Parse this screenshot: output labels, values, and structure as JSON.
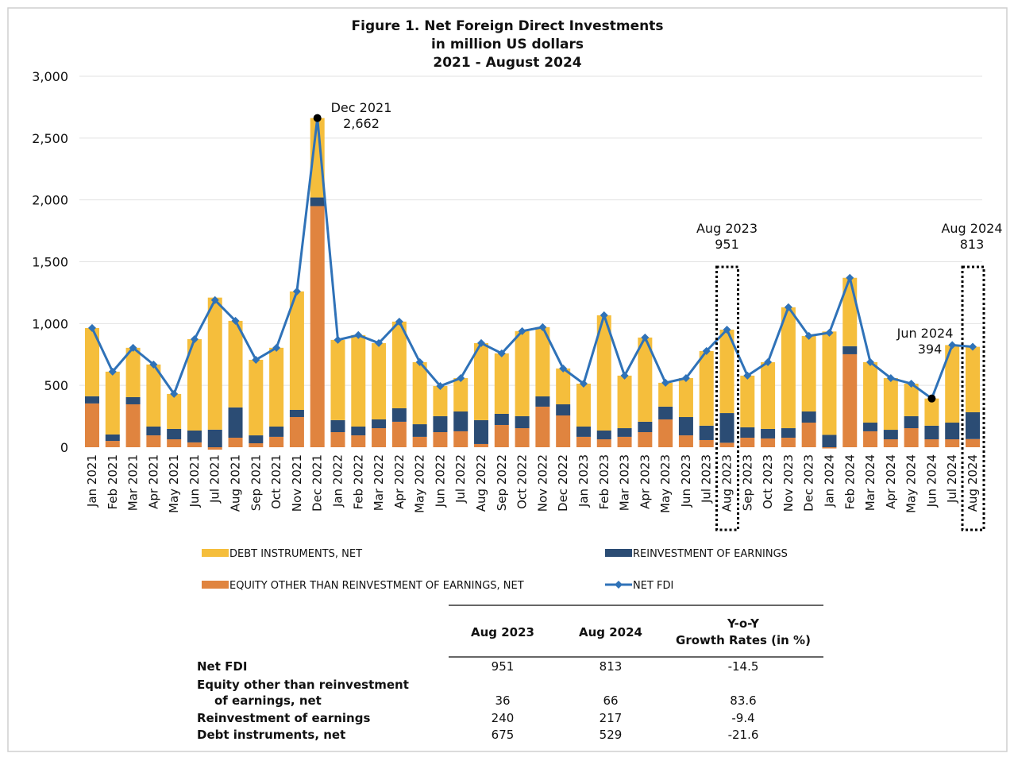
{
  "chart_data": {
    "type": "bar",
    "stacked": true,
    "title": [
      "Figure 1. Net Foreign Direct Investments",
      "in million US dollars",
      "2021 - August 2024"
    ],
    "ylim": [
      0,
      3000
    ],
    "yticks": [
      "0",
      "500",
      "1,000",
      "1,500",
      "2,000",
      "2,500",
      "3,000"
    ],
    "yticks_values": [
      0,
      500,
      1000,
      1500,
      2000,
      2500,
      3000
    ],
    "grid": true,
    "legend_position": "bottom",
    "colors": {
      "debt": "#F5BE3C",
      "reinvestment": "#2B4C74",
      "equity": "#E0843F",
      "net": "#2F72B8"
    },
    "categories": [
      "Jan 2021",
      "Feb 2021",
      "Mar 2021",
      "Apr 2021",
      "May 2021",
      "Jun 2021",
      "Jul 2021",
      "Aug 2021",
      "Sep 2021",
      "Oct 2021",
      "Nov 2021",
      "Dec 2021",
      "Jan 2022",
      "Feb 2022",
      "Mar 2022",
      "Apr 2022",
      "May 2022",
      "Jun 2022",
      "Jul 2022",
      "Aug 2022",
      "Sep 2022",
      "Oct 2022",
      "Nov 2022",
      "Dec 2022",
      "Jan 2023",
      "Feb 2023",
      "Mar 2023",
      "Apr 2023",
      "May 2023",
      "Jun 2023",
      "Jul 2023",
      "Aug 2023",
      "Sep 2023",
      "Oct 2023",
      "Nov 2023",
      "Dec 2023",
      "Jan 2024",
      "Feb 2024",
      "Mar 2024",
      "Apr 2024",
      "May 2024",
      "Jun 2024",
      "Jul 2024",
      "Aug 2024"
    ],
    "series": [
      {
        "name": "EQUITY OTHER THAN REINVESTMENT OF EARNINGS, NET",
        "key": "equity",
        "type": "bar",
        "values": [
          354,
          51,
          347,
          96,
          64,
          39,
          -20,
          77,
          32,
          84,
          244,
          1950,
          122,
          96,
          154,
          206,
          84,
          122,
          129,
          26,
          180,
          154,
          328,
          257,
          84,
          64,
          84,
          122,
          225,
          96,
          58,
          36,
          77,
          71,
          77,
          199,
          -10,
          752,
          129,
          64,
          154,
          64,
          64,
          66
        ]
      },
      {
        "name": "REINVESTMENT OF EARNINGS",
        "key": "reinvestment",
        "type": "bar",
        "values": [
          58,
          52,
          58,
          71,
          84,
          96,
          142,
          245,
          64,
          83,
          58,
          70,
          97,
          71,
          71,
          109,
          102,
          129,
          160,
          193,
          90,
          97,
          83,
          90,
          83,
          71,
          70,
          84,
          103,
          148,
          116,
          240,
          84,
          77,
          77,
          90,
          100,
          65,
          70,
          77,
          97,
          110,
          135,
          217
        ]
      },
      {
        "name": "DEBT INSTRUMENTS, NET",
        "key": "debt",
        "type": "bar",
        "values": [
          552,
          508,
          399,
          502,
          283,
          739,
          1068,
          700,
          611,
          637,
          958,
          642,
          649,
          740,
          617,
          701,
          502,
          244,
          270,
          623,
          489,
          688,
          560,
          290,
          347,
          932,
          425,
          681,
          193,
          315,
          604,
          675,
          418,
          540,
          978,
          611,
          836,
          553,
          489,
          418,
          263,
          220,
          627,
          529
        ]
      },
      {
        "name": "NET FDI",
        "key": "net",
        "type": "line",
        "values": [
          964,
          611,
          804,
          669,
          431,
          874,
          1190,
          1022,
          707,
          804,
          1260,
          2662,
          868,
          907,
          842,
          1016,
          688,
          495,
          559,
          842,
          759,
          939,
          971,
          637,
          514,
          1067,
          579,
          887,
          521,
          559,
          778,
          951,
          579,
          688,
          1132,
          900,
          926,
          1370,
          688,
          559,
          514,
          394,
          826,
          813
        ]
      }
    ],
    "annotations": [
      {
        "label": "Dec 2021",
        "value": "2,662",
        "index": 11,
        "marker": "dot"
      },
      {
        "label": "Aug 2023",
        "value": "951",
        "index": 31,
        "marker": "box"
      },
      {
        "label": "Jun 2024",
        "value": "394",
        "index": 41,
        "marker": "dot"
      },
      {
        "label": "Aug 2024",
        "value": "813",
        "index": 43,
        "marker": "box"
      }
    ]
  },
  "legend": {
    "debt": "DEBT INSTRUMENTS, NET",
    "reinvestment": "REINVESTMENT OF EARNINGS",
    "equity": "EQUITY OTHER THAN REINVESTMENT OF EARNINGS, NET",
    "net": "NET FDI"
  },
  "table": {
    "headers": [
      "Aug 2023",
      "Aug 2024",
      "Y-o-Y",
      "Growth Rates (in %)"
    ],
    "rows": [
      {
        "label": [
          "Net FDI"
        ],
        "values": [
          "951",
          "813",
          "-14.5"
        ]
      },
      {
        "label": [
          "Equity other than reinvestment",
          "of earnings, net"
        ],
        "values": [
          "36",
          "66",
          "83.6"
        ]
      },
      {
        "label": [
          "Reinvestment of earnings"
        ],
        "values": [
          "240",
          "217",
          "-9.4"
        ]
      },
      {
        "label": [
          "Debt instruments, net"
        ],
        "values": [
          "675",
          "529",
          "-21.6"
        ]
      }
    ]
  }
}
